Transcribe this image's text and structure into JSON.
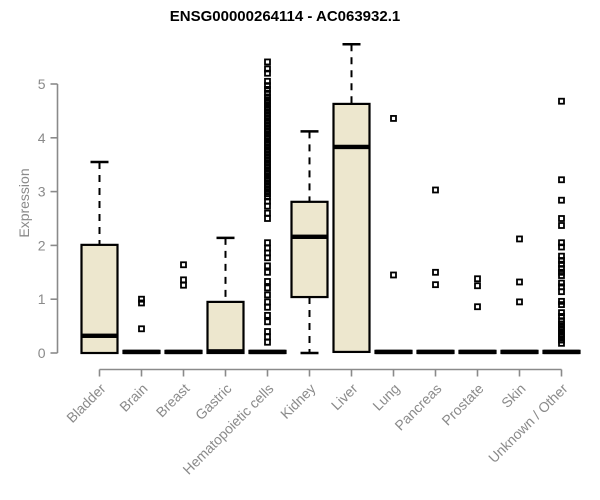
{
  "chart_data": {
    "type": "boxplot",
    "title": "ENSG00000264114 - AC063932.1",
    "ylabel": "Expression",
    "ylim": [
      0,
      5.8
    ],
    "yticks": [
      0,
      1,
      2,
      3,
      4,
      5
    ],
    "grid": false,
    "legend": "none",
    "categories": [
      "Bladder",
      "Brain",
      "Breast",
      "Gastric",
      "Hematopoietic cells",
      "Kidney",
      "Liver",
      "Lung",
      "Pancreas",
      "Prostate",
      "Skin",
      "Unknown / Other"
    ],
    "series": [
      {
        "name": "Bladder",
        "low": 0,
        "q1": 0,
        "median": 0.32,
        "q3": 2.01,
        "high": 3.55,
        "outliers": []
      },
      {
        "name": "Brain",
        "low": 0,
        "q1": 0,
        "median": 0.02,
        "q3": 0.04,
        "high": 0.04,
        "outliers": [
          0.45,
          0.93,
          1.0
        ]
      },
      {
        "name": "Breast",
        "low": 0,
        "q1": 0,
        "median": 0.02,
        "q3": 0.04,
        "high": 0.04,
        "outliers": [
          1.26,
          1.36,
          1.64
        ]
      },
      {
        "name": "Gastric",
        "low": 0,
        "q1": 0,
        "median": 0.03,
        "q3": 0.95,
        "high": 2.14,
        "outliers": []
      },
      {
        "name": "Hematopoietic cells",
        "low": 0,
        "q1": 0,
        "median": 0.02,
        "q3": 0.04,
        "high": 0.04,
        "outliers": [
          5.41,
          5.28,
          5.2,
          5.05,
          4.97,
          4.9,
          4.83,
          4.76,
          4.7,
          4.64,
          4.58,
          4.52,
          4.46,
          4.4,
          4.34,
          4.28,
          4.22,
          4.16,
          4.1,
          4.04,
          3.98,
          3.92,
          3.86,
          3.8,
          3.74,
          3.68,
          3.62,
          3.56,
          3.5,
          3.44,
          3.38,
          3.32,
          3.26,
          3.2,
          3.14,
          3.08,
          3.02,
          2.96,
          2.9,
          2.82,
          2.73,
          2.6,
          2.5,
          2.05,
          1.95,
          1.86,
          1.77,
          1.62,
          1.5,
          1.33,
          1.21,
          1.08,
          0.95,
          0.85,
          0.7,
          0.58,
          0.4,
          0.3,
          0.2
        ]
      },
      {
        "name": "Kidney",
        "low": 0,
        "q1": 1.04,
        "median": 2.16,
        "q3": 2.81,
        "high": 4.12,
        "outliers": []
      },
      {
        "name": "Liver",
        "low": 0.02,
        "q1": 0.02,
        "median": 3.83,
        "q3": 4.63,
        "high": 5.74,
        "outliers": []
      },
      {
        "name": "Lung",
        "low": 0,
        "q1": 0,
        "median": 0.02,
        "q3": 0.04,
        "high": 0.04,
        "outliers": [
          1.45,
          4.36
        ]
      },
      {
        "name": "Pancreas",
        "low": 0,
        "q1": 0,
        "median": 0.02,
        "q3": 0.04,
        "high": 0.04,
        "outliers": [
          1.27,
          1.5,
          3.03
        ]
      },
      {
        "name": "Prostate",
        "low": 0,
        "q1": 0,
        "median": 0.02,
        "q3": 0.04,
        "high": 0.04,
        "outliers": [
          0.86,
          1.25,
          1.38
        ]
      },
      {
        "name": "Skin",
        "low": 0,
        "q1": 0,
        "median": 0.02,
        "q3": 0.04,
        "high": 0.04,
        "outliers": [
          0.95,
          1.32,
          2.12
        ]
      },
      {
        "name": "Unknown / Other",
        "low": 0,
        "q1": 0,
        "median": 0.02,
        "q3": 0.04,
        "high": 0.04,
        "outliers": [
          4.68,
          3.22,
          2.84,
          2.5,
          2.37,
          2.05,
          1.97,
          1.8,
          1.72,
          1.65,
          1.57,
          1.5,
          1.44,
          1.3,
          1.23,
          1.14,
          0.96,
          0.9,
          0.75,
          0.68,
          0.6,
          0.54,
          0.48,
          0.42,
          0.36,
          0.3,
          0.24,
          0.18
        ]
      }
    ],
    "colors": {
      "box_fill": "#EDE7CE",
      "box_border": "#000000",
      "median": "#000000",
      "whisker": "#000000",
      "outlier": "#000000",
      "axis": "#8A8A8A",
      "tick_label": "#8A8A8A",
      "title": "#000000",
      "background": "#FFFFFF"
    }
  }
}
